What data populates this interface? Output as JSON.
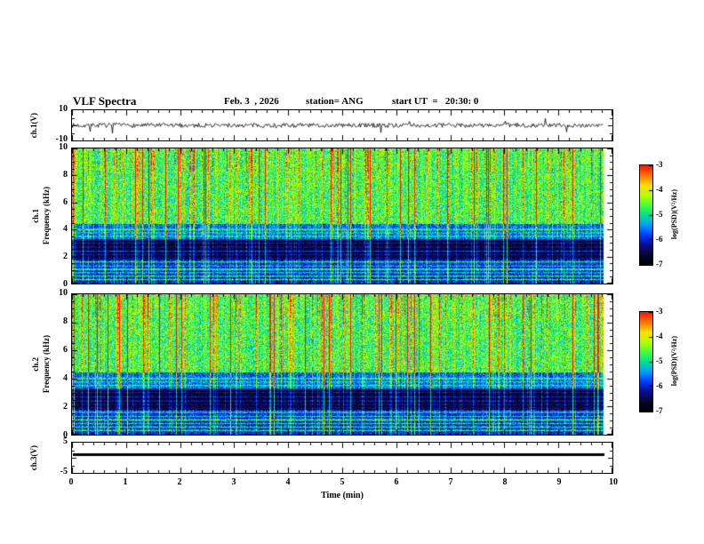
{
  "header": {
    "title": "VLF Spectra",
    "date": "Feb. 3  , 2026",
    "station": "station= ANG",
    "start_ut": "start UT  =   20:30: 0"
  },
  "xaxis": {
    "label": "Time (min)",
    "ticks": [
      "0",
      "1",
      "2",
      "3",
      "4",
      "5",
      "6",
      "7",
      "8",
      "9",
      "10"
    ]
  },
  "panels": {
    "ch1_ts": {
      "label": "ch.1(V)",
      "ymax": "10",
      "ymin": "-10"
    },
    "ch1_spec": {
      "channel": "ch.1",
      "ylabel": "Frequency (kHz)",
      "yticks": [
        "10",
        "8",
        "6",
        "4",
        "2",
        "0"
      ]
    },
    "ch2_spec": {
      "channel": "ch.2",
      "ylabel": "Frequency (kHz)",
      "yticks": [
        "10",
        "8",
        "6",
        "4",
        "2",
        "0"
      ]
    },
    "ch3_ts": {
      "label": "ch.3(V)",
      "ymax": "5",
      "ymin": "-5"
    }
  },
  "colorbar": {
    "label": "log(PSD)(V²/Hz)",
    "ticks": [
      "-3",
      "-4",
      "-5",
      "-6",
      "-7"
    ],
    "range": [
      -7,
      -3
    ]
  },
  "chart_data": [
    {
      "type": "line",
      "panel": "ch.1(V) waveform",
      "xlabel": "Time (min)",
      "xlim": [
        0,
        10
      ],
      "ylabel": "ch.1(V)",
      "ylim": [
        -10,
        10
      ],
      "description": "Noisy waveform centred on 0 V, amplitude mostly within ±2 V with sporadic spikes to about ±4 V over the full 10 minutes."
    },
    {
      "type": "heatmap",
      "panel": "ch.1 spectrogram",
      "xlabel": "Time (min)",
      "xlim": [
        0,
        10
      ],
      "ylabel": "Frequency (kHz)",
      "ylim": [
        0,
        10
      ],
      "zlabel": "log(PSD)(V²/Hz)",
      "zlim": [
        -7,
        -3
      ],
      "description": "Broadband VLF noise. 4.5–10 kHz: mostly green (≈ -4.5) with dense vertical sferic streaks reaching yellow/orange and red tips (≈ -3) near 9–10 kHz. 3.3–4.4 kHz: blue band (≈ -5.5) containing cyan horizontal tones near 4.0, 3.5 and 3.25 kHz. 1.8–3.3 kHz: near-black band (≈ -7) with faint horizontal lines near 2.4 and 2.7 kHz. Below 1.8 kHz: dark blue with bright horizontal tones near 1.6, 1.05, 0.55 and 0.3 kHz. Vertical streaks cross all bands; record ends at ≈ 9.85 min."
    },
    {
      "type": "heatmap",
      "panel": "ch.2 spectrogram",
      "xlabel": "Time (min)",
      "xlim": [
        0,
        10
      ],
      "ylabel": "Frequency (kHz)",
      "ylim": [
        0,
        10
      ],
      "zlabel": "log(PSD)(V²/Hz)",
      "zlim": [
        -7,
        -3
      ],
      "description": "Same structure as ch.1: green broadband 4.5–10 kHz with yellow/red vertical sferic streaks, blue lined band 3.3–4.4 kHz, near-black band 1.8–3.3 kHz, dark blue with bright horizontal tones below 1.8 kHz."
    },
    {
      "type": "line",
      "panel": "ch.3(V) waveform",
      "xlabel": "Time (min)",
      "xlim": [
        0,
        10
      ],
      "ylabel": "ch.3(V)",
      "ylim": [
        -5,
        5
      ],
      "description": "Flat thick trace: constant level near +1 V for the entire record (no variation)."
    }
  ]
}
